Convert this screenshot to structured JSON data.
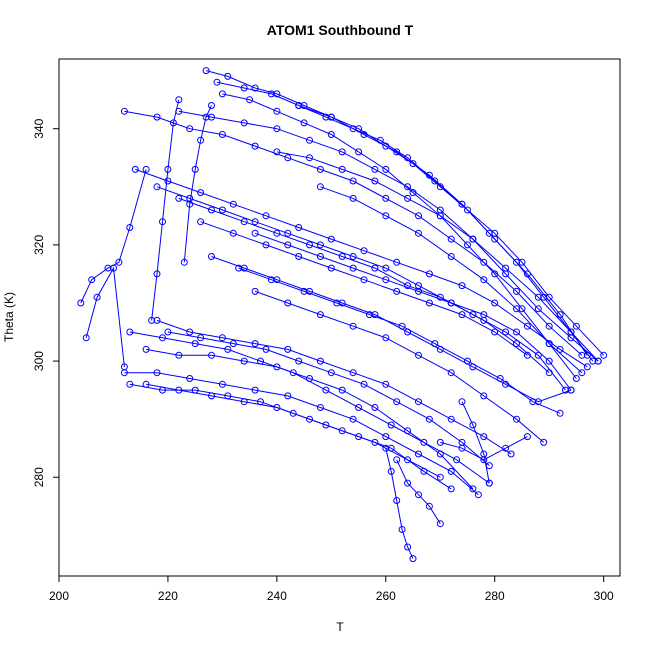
{
  "chart_data": {
    "type": "scatter",
    "title": "ATOM1 Southbound T",
    "xlabel": "T",
    "ylabel": "Theta (K)",
    "xlim": [
      200,
      303
    ],
    "ylim": [
      263,
      352
    ],
    "xticks": [
      200,
      220,
      240,
      260,
      280,
      300
    ],
    "yticks": [
      280,
      300,
      320,
      340
    ],
    "grid": false,
    "color": "#0000ff",
    "marker": "open-circle",
    "connected": true,
    "series": [
      {
        "x": [
          227,
          231,
          236,
          240,
          245,
          250,
          255,
          260,
          265,
          270,
          275,
          280,
          285,
          290,
          295,
          300
        ],
        "y": [
          350,
          349,
          347,
          346,
          344,
          342,
          340,
          337,
          334,
          330,
          326,
          322,
          317,
          311,
          306,
          301
        ]
      },
      {
        "x": [
          229,
          234,
          239,
          244,
          249,
          254,
          259,
          264,
          269,
          274,
          279,
          284,
          289,
          294,
          299
        ],
        "y": [
          348,
          347,
          346,
          344,
          342,
          340,
          338,
          335,
          331,
          327,
          322,
          317,
          311,
          305,
          300
        ]
      },
      {
        "x": [
          222,
          228,
          234,
          240,
          246,
          252,
          258,
          264,
          270,
          276,
          282,
          288,
          294,
          299
        ],
        "y": [
          343,
          342,
          341,
          340,
          338,
          336,
          333,
          330,
          326,
          321,
          315,
          309,
          304,
          300
        ]
      },
      {
        "x": [
          212,
          218,
          224,
          230,
          236,
          242,
          248,
          254,
          260,
          266,
          272,
          278,
          284,
          290,
          296
        ],
        "y": [
          343,
          342,
          340,
          339,
          337,
          335,
          333,
          331,
          328,
          325,
          321,
          317,
          312,
          306,
          301
        ]
      },
      {
        "x": [
          214,
          220,
          226,
          232,
          238,
          244,
          250,
          256,
          262,
          268,
          274,
          280,
          286,
          292,
          297
        ],
        "y": [
          333,
          331,
          329,
          327,
          325,
          323,
          321,
          319,
          317,
          315,
          313,
          310,
          306,
          302,
          299
        ]
      },
      {
        "x": [
          218,
          224,
          230,
          236,
          242,
          248,
          254,
          260,
          266,
          272,
          278,
          284,
          290
        ],
        "y": [
          330,
          328,
          326,
          324,
          322,
          320,
          318,
          316,
          313,
          310,
          307,
          303,
          298
        ]
      },
      {
        "x": [
          222,
          228,
          234,
          240,
          246,
          252,
          258,
          264,
          270,
          276,
          282,
          288,
          293
        ],
        "y": [
          328,
          326,
          324,
          322,
          320,
          318,
          316,
          313,
          311,
          308,
          305,
          301,
          295
        ]
      },
      {
        "x": [
          226,
          232,
          238,
          244,
          250,
          256,
          262,
          268,
          274,
          280,
          286
        ],
        "y": [
          324,
          322,
          320,
          318,
          316,
          314,
          312,
          310,
          308,
          305,
          301
        ]
      },
      {
        "x": [
          240,
          246,
          252,
          258,
          264,
          270,
          276,
          282,
          288,
          294,
          298
        ],
        "y": [
          336,
          335,
          333,
          331,
          328,
          325,
          321,
          316,
          311,
          305,
          300
        ]
      },
      {
        "x": [
          248,
          254,
          260,
          266,
          272,
          278,
          284,
          290,
          296
        ],
        "y": [
          330,
          328,
          325,
          322,
          318,
          314,
          309,
          303,
          298
        ]
      },
      {
        "x": [
          236,
          242,
          248,
          254,
          260,
          266,
          272,
          278,
          284,
          290,
          294
        ],
        "y": [
          322,
          320,
          318,
          316,
          314,
          312,
          310,
          308,
          305,
          300,
          295
        ]
      },
      {
        "x": [
          218,
          224,
          230,
          236,
          242,
          248,
          254,
          260,
          266,
          272,
          278,
          283
        ],
        "y": [
          307,
          305,
          304,
          303,
          302,
          300,
          298,
          296,
          293,
          290,
          287,
          284
        ]
      },
      {
        "x": [
          220,
          226,
          232,
          238,
          244,
          250,
          256,
          262,
          268,
          274,
          279
        ],
        "y": [
          305,
          304,
          303,
          302,
          300,
          298,
          296,
          293,
          290,
          286,
          282
        ]
      },
      {
        "x": [
          213,
          219,
          225,
          231,
          237,
          243,
          249,
          255,
          261,
          267,
          273,
          279
        ],
        "y": [
          305,
          304,
          303,
          302,
          300,
          298,
          295,
          292,
          289,
          286,
          283,
          279
        ]
      },
      {
        "x": [
          216,
          222,
          228,
          234,
          240,
          246,
          252,
          258,
          264,
          270,
          276
        ],
        "y": [
          302,
          301,
          301,
          300,
          299,
          297,
          295,
          292,
          288,
          284,
          278
        ]
      },
      {
        "x": [
          212,
          218,
          224,
          230,
          236,
          242,
          248,
          254,
          260,
          266,
          272,
          277
        ],
        "y": [
          298,
          298,
          297,
          296,
          295,
          294,
          292,
          290,
          287,
          284,
          281,
          277
        ]
      },
      {
        "x": [
          213,
          219,
          225,
          231,
          237,
          243,
          249,
          255,
          261,
          267,
          272
        ],
        "y": [
          296,
          295,
          295,
          294,
          293,
          291,
          289,
          287,
          285,
          281,
          278
        ]
      },
      {
        "x": [
          216,
          222,
          228,
          234,
          240,
          246,
          252,
          258,
          264,
          270
        ],
        "y": [
          296,
          295,
          294,
          293,
          292,
          290,
          288,
          286,
          283,
          280
        ]
      },
      {
        "x": [
          204,
          206,
          209,
          211,
          213,
          216
        ],
        "y": [
          310,
          314,
          316,
          317,
          323,
          333
        ]
      },
      {
        "x": [
          205,
          207,
          210,
          212
        ],
        "y": [
          304,
          311,
          316,
          299
        ]
      },
      {
        "x": [
          217,
          218,
          219,
          220,
          221,
          222
        ],
        "y": [
          307,
          315,
          324,
          333,
          341,
          345
        ]
      },
      {
        "x": [
          223,
          224,
          225,
          226,
          227,
          228
        ],
        "y": [
          317,
          327,
          333,
          338,
          342,
          344
        ]
      },
      {
        "x": [
          260,
          261,
          262,
          263,
          264,
          265
        ],
        "y": [
          285,
          281,
          276,
          271,
          268,
          266
        ]
      },
      {
        "x": [
          262,
          264,
          266,
          268,
          270
        ],
        "y": [
          283,
          279,
          277,
          275,
          272
        ]
      },
      {
        "x": [
          270,
          274,
          278,
          282,
          286
        ],
        "y": [
          286,
          285,
          283,
          285,
          287
        ]
      },
      {
        "x": [
          274,
          276,
          278,
          279
        ],
        "y": [
          293,
          289,
          284,
          279
        ]
      },
      {
        "x": [
          230,
          235,
          240,
          245,
          250,
          255,
          260,
          265,
          270,
          275,
          280,
          285,
          290,
          295
        ],
        "y": [
          346,
          345,
          343,
          341,
          339,
          336,
          333,
          329,
          325,
          320,
          315,
          309,
          303,
          297
        ]
      },
      {
        "x": [
          244,
          250,
          256,
          262,
          268,
          274,
          280,
          286,
          292,
          297
        ],
        "y": [
          344,
          342,
          339,
          336,
          332,
          327,
          321,
          315,
          308,
          301
        ]
      },
      {
        "x": [
          233,
          239,
          245,
          251,
          257,
          263,
          269,
          275,
          281,
          287,
          292
        ],
        "y": [
          316,
          314,
          312,
          310,
          308,
          306,
          303,
          300,
          297,
          293,
          291
        ]
      },
      {
        "x": [
          236,
          242,
          248,
          254,
          260,
          266,
          272,
          278,
          284,
          289
        ],
        "y": [
          312,
          310,
          308,
          306,
          304,
          301,
          298,
          294,
          290,
          286
        ]
      },
      {
        "x": [
          228,
          234,
          240,
          246,
          252,
          258,
          264,
          270,
          276,
          282,
          288,
          294
        ],
        "y": [
          318,
          316,
          314,
          312,
          310,
          308,
          305,
          302,
          299,
          296,
          293,
          295
        ]
      }
    ]
  }
}
